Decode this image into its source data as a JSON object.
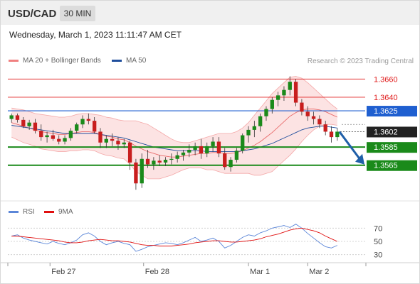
{
  "header": {
    "symbol": "USD/CAD",
    "timeframe": "30 MIN",
    "timestamp": "Wednesday, March 1, 2023 11:11:47 AM CET"
  },
  "legend": {
    "bollinger": {
      "label": "MA 20 + Bollinger Bands",
      "color": "#f08080"
    },
    "ma50": {
      "label": "MA 50",
      "color": "#1f4e9c"
    },
    "rsi": {
      "label": "RSI",
      "color": "#5b86d8"
    },
    "rsi_ma": {
      "label": "9MA",
      "color": "#e01010"
    }
  },
  "credit": "Research © 2023 Trading Central",
  "chart_data": [
    {
      "type": "candlestick",
      "pair": "USD/CAD",
      "interval": "30 MIN",
      "ylim": [
        1.3528,
        1.3672
      ],
      "xlabels": [
        "Feb 27",
        "Feb 28",
        "Mar 1",
        "Mar 2"
      ],
      "levels": [
        {
          "value": 1.366,
          "label": "1.3660",
          "kind": "resistance",
          "color": "#e01b1b"
        },
        {
          "value": 1.364,
          "label": "1.3640",
          "kind": "resistance",
          "color": "#e01b1b"
        },
        {
          "value": 1.3625,
          "label": "1.3625",
          "kind": "pivot",
          "color": "#1f5fd0"
        },
        {
          "value": 1.3602,
          "label": "1.3602",
          "kind": "last-price",
          "color": "#222222"
        },
        {
          "value": 1.3585,
          "label": "1.3585",
          "kind": "target",
          "color": "#1a8a1a"
        },
        {
          "value": 1.3565,
          "label": "1.3565",
          "kind": "target",
          "color": "#1a8a1a"
        }
      ],
      "ohlc": [
        [
          1.3616,
          1.3622,
          1.3612,
          1.362
        ],
        [
          1.362,
          1.3622,
          1.3612,
          1.3615
        ],
        [
          1.3615,
          1.3618,
          1.3606,
          1.3608
        ],
        [
          1.3608,
          1.3615,
          1.3604,
          1.3612
        ],
        [
          1.3612,
          1.3616,
          1.36,
          1.3603
        ],
        [
          1.3603,
          1.361,
          1.3592,
          1.3596
        ],
        [
          1.3596,
          1.3602,
          1.359,
          1.3598
        ],
        [
          1.3598,
          1.3604,
          1.3592,
          1.3594
        ],
        [
          1.3594,
          1.3598,
          1.3588,
          1.3591
        ],
        [
          1.3591,
          1.3598,
          1.3588,
          1.3595
        ],
        [
          1.3595,
          1.3606,
          1.3592,
          1.3603
        ],
        [
          1.3603,
          1.3612,
          1.36,
          1.361
        ],
        [
          1.361,
          1.362,
          1.3606,
          1.3616
        ],
        [
          1.3616,
          1.3622,
          1.361,
          1.3614
        ],
        [
          1.3614,
          1.3618,
          1.36,
          1.3602
        ],
        [
          1.3602,
          1.3606,
          1.3584,
          1.359
        ],
        [
          1.359,
          1.3598,
          1.3584,
          1.3594
        ],
        [
          1.3594,
          1.36,
          1.3586,
          1.3592
        ],
        [
          1.3592,
          1.3596,
          1.3582,
          1.3588
        ],
        [
          1.3588,
          1.3594,
          1.3584,
          1.359
        ],
        [
          1.359,
          1.3592,
          1.356,
          1.3568
        ],
        [
          1.3568,
          1.3572,
          1.3538,
          1.3545
        ],
        [
          1.3545,
          1.3578,
          1.354,
          1.3572
        ],
        [
          1.3572,
          1.3582,
          1.3562,
          1.3566
        ],
        [
          1.3566,
          1.3574,
          1.356,
          1.357
        ],
        [
          1.357,
          1.3576,
          1.3564,
          1.3568
        ],
        [
          1.3568,
          1.3574,
          1.3564,
          1.3571
        ],
        [
          1.3571,
          1.3578,
          1.3566,
          1.3572
        ],
        [
          1.3572,
          1.358,
          1.3568,
          1.3576
        ],
        [
          1.3576,
          1.3582,
          1.357,
          1.3579
        ],
        [
          1.3579,
          1.3588,
          1.3574,
          1.3582
        ],
        [
          1.3582,
          1.359,
          1.3576,
          1.3586
        ],
        [
          1.3586,
          1.3594,
          1.3572,
          1.3578
        ],
        [
          1.3578,
          1.359,
          1.3574,
          1.3586
        ],
        [
          1.3586,
          1.3596,
          1.358,
          1.3591
        ],
        [
          1.3591,
          1.3596,
          1.3574,
          1.3578
        ],
        [
          1.3578,
          1.3584,
          1.356,
          1.3563
        ],
        [
          1.3563,
          1.3574,
          1.3558,
          1.3571
        ],
        [
          1.3571,
          1.3584,
          1.3568,
          1.3581
        ],
        [
          1.3581,
          1.36,
          1.3578,
          1.3598
        ],
        [
          1.3598,
          1.3608,
          1.359,
          1.3604
        ],
        [
          1.3604,
          1.3614,
          1.3596,
          1.3608
        ],
        [
          1.3608,
          1.3622,
          1.3602,
          1.3619
        ],
        [
          1.3619,
          1.363,
          1.3614,
          1.3627
        ],
        [
          1.3627,
          1.364,
          1.3622,
          1.3637
        ],
        [
          1.3637,
          1.3646,
          1.363,
          1.3642
        ],
        [
          1.3642,
          1.3652,
          1.3636,
          1.3648
        ],
        [
          1.3648,
          1.3663,
          1.3642,
          1.3657
        ],
        [
          1.3657,
          1.366,
          1.363,
          1.3634
        ],
        [
          1.3634,
          1.3638,
          1.362,
          1.3624
        ],
        [
          1.3624,
          1.363,
          1.3614,
          1.3619
        ],
        [
          1.3619,
          1.3624,
          1.361,
          1.3616
        ],
        [
          1.3616,
          1.362,
          1.3606,
          1.361
        ],
        [
          1.361,
          1.3614,
          1.3598,
          1.3602
        ],
        [
          1.3602,
          1.3608,
          1.359,
          1.3596
        ],
        [
          1.3596,
          1.3606,
          1.3592,
          1.3602
        ]
      ],
      "ma20": [
        1.3612,
        1.361,
        1.3608,
        1.3606,
        1.3604,
        1.3602,
        1.3601,
        1.36,
        1.3599,
        1.3599,
        1.36,
        1.3601,
        1.3602,
        1.3602,
        1.3601,
        1.3599,
        1.3597,
        1.3596,
        1.3594,
        1.3593,
        1.359,
        1.3586,
        1.3583,
        1.358,
        1.3578,
        1.3576,
        1.3575,
        1.3574,
        1.3574,
        1.3575,
        1.3576,
        1.3577,
        1.3578,
        1.3578,
        1.3579,
        1.3579,
        1.3578,
        1.3578,
        1.3579,
        1.3581,
        1.3584,
        1.3587,
        1.3591,
        1.3596,
        1.3601,
        1.3607,
        1.3613,
        1.3619,
        1.3623,
        1.3626,
        1.3627,
        1.3627,
        1.3626,
        1.3624,
        1.3621,
        1.3618
      ],
      "bb_upper": [
        1.3628,
        1.3627,
        1.3626,
        1.3624,
        1.3622,
        1.3621,
        1.362,
        1.3619,
        1.3618,
        1.3618,
        1.3619,
        1.3621,
        1.3622,
        1.3622,
        1.3621,
        1.362,
        1.3618,
        1.3617,
        1.3615,
        1.3614,
        1.3614,
        1.3614,
        1.3612,
        1.361,
        1.3606,
        1.3602,
        1.3598,
        1.3594,
        1.3591,
        1.359,
        1.359,
        1.3592,
        1.3594,
        1.3596,
        1.3598,
        1.36,
        1.36,
        1.36,
        1.3602,
        1.3606,
        1.3612,
        1.362,
        1.3628,
        1.3636,
        1.3644,
        1.365,
        1.3656,
        1.3662,
        1.3663,
        1.3661,
        1.3656,
        1.365,
        1.3644,
        1.3638,
        1.3632,
        1.3627
      ],
      "bb_lower": [
        1.3596,
        1.3593,
        1.359,
        1.3588,
        1.3586,
        1.3583,
        1.3582,
        1.3581,
        1.358,
        1.358,
        1.3581,
        1.3581,
        1.3582,
        1.3582,
        1.3581,
        1.3578,
        1.3576,
        1.3575,
        1.3573,
        1.3572,
        1.3566,
        1.3558,
        1.3554,
        1.355,
        1.355,
        1.355,
        1.3552,
        1.3554,
        1.3557,
        1.356,
        1.3562,
        1.3562,
        1.3562,
        1.356,
        1.356,
        1.3558,
        1.3556,
        1.3556,
        1.3556,
        1.3556,
        1.3556,
        1.3554,
        1.3554,
        1.3556,
        1.3558,
        1.3564,
        1.357,
        1.3576,
        1.3583,
        1.3591,
        1.3598,
        1.3604,
        1.3608,
        1.361,
        1.361,
        1.3609
      ],
      "ma50": [
        1.3609,
        1.3608,
        1.3607,
        1.3606,
        1.3605,
        1.3604,
        1.3603,
        1.3602,
        1.3601,
        1.36,
        1.36,
        1.36,
        1.36,
        1.36,
        1.36,
        1.3599,
        1.3598,
        1.3597,
        1.3596,
        1.3595,
        1.3593,
        1.3591,
        1.3589,
        1.3587,
        1.3585,
        1.3584,
        1.3583,
        1.3582,
        1.3581,
        1.3581,
        1.3581,
        1.3581,
        1.3581,
        1.358,
        1.358,
        1.358,
        1.358,
        1.358,
        1.358,
        1.3581,
        1.3582,
        1.3583,
        1.3585,
        1.3587,
        1.3589,
        1.3592,
        1.3595,
        1.3598,
        1.3601,
        1.3604,
        1.3606,
        1.3607,
        1.3608,
        1.3608,
        1.3607,
        1.3606
      ],
      "forecast_arrow": {
        "from": 1.3602,
        "to": 1.3565,
        "direction": "down"
      }
    },
    {
      "type": "line",
      "title": "RSI",
      "ylim": [
        20,
        80
      ],
      "yticks": [
        30,
        50,
        70
      ],
      "series": [
        {
          "name": "RSI",
          "color": "#5b86d8",
          "values": [
            58,
            60,
            55,
            52,
            50,
            48,
            46,
            50,
            47,
            45,
            48,
            52,
            60,
            63,
            58,
            50,
            45,
            48,
            50,
            47,
            45,
            35,
            38,
            42,
            44,
            46,
            48,
            47,
            45,
            48,
            52,
            56,
            50,
            52,
            55,
            50,
            40,
            44,
            50,
            56,
            60,
            58,
            63,
            66,
            70,
            72,
            74,
            71,
            76,
            70,
            62,
            55,
            48,
            42,
            40,
            44
          ]
        },
        {
          "name": "9MA",
          "color": "#e01010",
          "values": [
            58,
            58,
            57,
            56,
            55,
            54,
            53,
            52,
            51,
            49,
            48,
            48,
            49,
            51,
            52,
            53,
            52,
            51,
            51,
            50,
            49,
            47,
            45,
            44,
            44,
            43,
            43,
            43,
            44,
            45,
            46,
            48,
            49,
            50,
            51,
            51,
            50,
            49,
            49,
            50,
            51,
            52,
            54,
            57,
            59,
            61,
            64,
            67,
            69,
            70,
            68,
            66,
            63,
            58,
            54,
            50
          ]
        }
      ]
    }
  ]
}
